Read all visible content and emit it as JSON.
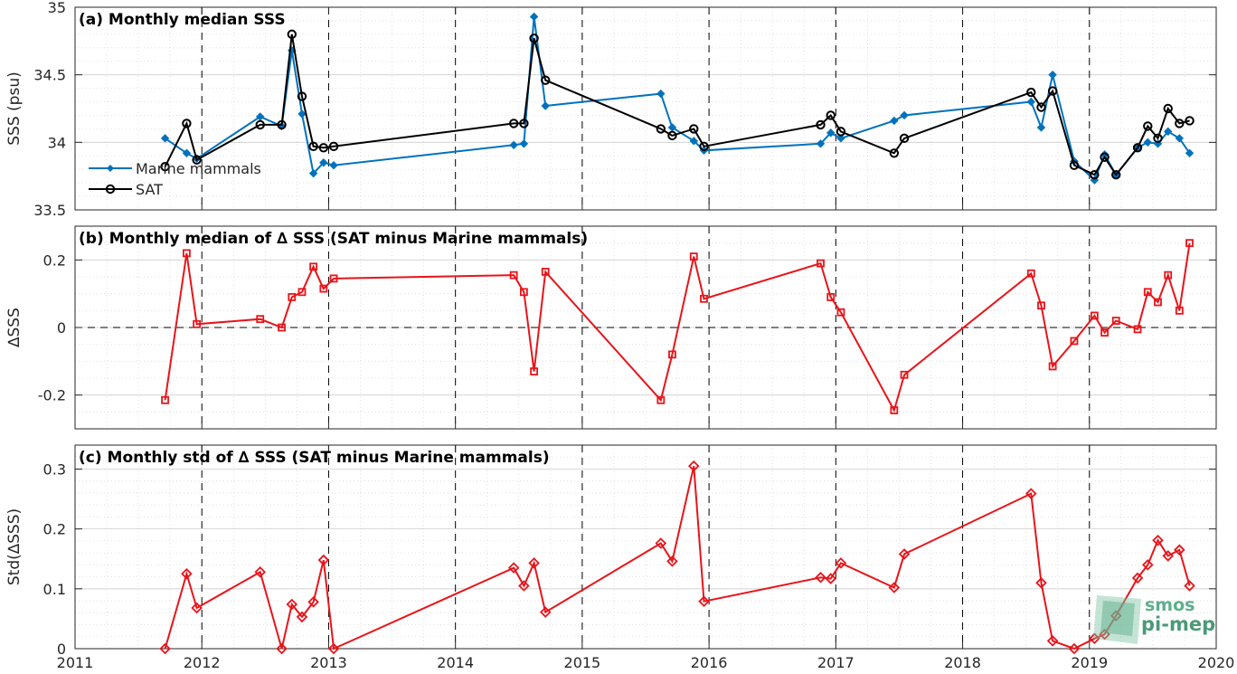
{
  "colors": {
    "blue": "#0072BD",
    "black": "#000000",
    "red": "#E8141A",
    "grid": "#d9d9d9",
    "logo": "#5fae8c"
  },
  "logo": {
    "line1": "smos",
    "line2": "pi-mep",
    "icon": "smos-pi-mep-logo"
  },
  "x_ticks": [
    "2011",
    "2012",
    "2013",
    "2014",
    "2015",
    "2016",
    "2017",
    "2018",
    "2019",
    "2020"
  ],
  "chart_data": [
    {
      "type": "line",
      "title": "(a) Monthly median SSS",
      "xlabel": "",
      "ylabel": "SSS (psu)",
      "xlim": [
        2011,
        2020
      ],
      "ylim": [
        33.5,
        35
      ],
      "y_ticks": [
        "33.5",
        "34",
        "34.5",
        "35"
      ],
      "y_tick_values": [
        33.5,
        34,
        34.5,
        35
      ],
      "grid": "on",
      "legend": "lower-left",
      "series": [
        {
          "name": "Marine mammals",
          "x": [
            2011.71,
            2011.88,
            2011.96,
            2012.46,
            2012.63,
            2012.71,
            2012.79,
            2012.88,
            2012.96,
            2013.04,
            2014.46,
            2014.54,
            2014.62,
            2014.71,
            2015.62,
            2015.71,
            2015.88,
            2015.96,
            2016.88,
            2016.96,
            2017.04,
            2017.46,
            2017.54,
            2018.54,
            2018.62,
            2018.71,
            2018.88,
            2019.04,
            2019.12,
            2019.21,
            2019.38,
            2019.46,
            2019.54,
            2019.62,
            2019.71,
            2019.79
          ],
          "y": [
            34.03,
            33.92,
            33.88,
            34.19,
            34.12,
            34.68,
            34.21,
            33.77,
            33.85,
            33.83,
            33.98,
            33.99,
            34.93,
            34.27,
            34.36,
            34.11,
            34.01,
            33.94,
            33.99,
            34.07,
            34.03,
            34.16,
            34.2,
            34.3,
            34.11,
            34.5,
            33.86,
            33.72,
            33.91,
            33.76,
            33.96,
            34.0,
            33.99,
            34.08,
            34.03,
            33.92
          ]
        },
        {
          "name": "SAT",
          "x": [
            2011.71,
            2011.88,
            2011.96,
            2012.46,
            2012.63,
            2012.71,
            2012.79,
            2012.88,
            2012.96,
            2013.04,
            2014.46,
            2014.54,
            2014.62,
            2014.71,
            2015.62,
            2015.71,
            2015.88,
            2015.96,
            2016.88,
            2016.96,
            2017.04,
            2017.46,
            2017.54,
            2018.54,
            2018.62,
            2018.71,
            2018.88,
            2019.04,
            2019.12,
            2019.21,
            2019.38,
            2019.46,
            2019.54,
            2019.62,
            2019.71,
            2019.79
          ],
          "y": [
            33.82,
            34.14,
            33.87,
            34.13,
            34.13,
            34.8,
            34.34,
            33.97,
            33.96,
            33.97,
            34.14,
            34.14,
            34.77,
            34.46,
            34.1,
            34.05,
            34.1,
            33.97,
            34.13,
            34.2,
            34.08,
            33.92,
            34.03,
            34.37,
            34.26,
            34.38,
            33.83,
            33.76,
            33.89,
            33.76,
            33.96,
            34.12,
            34.03,
            34.25,
            34.14,
            34.16
          ]
        }
      ]
    },
    {
      "type": "line",
      "title": "(b) Monthly median of ∆ SSS (SAT minus Marine mammals)",
      "xlabel": "",
      "ylabel": "∆SSS",
      "xlim": [
        2011,
        2020
      ],
      "ylim": [
        -0.3,
        0.3
      ],
      "y_ticks": [
        "-0.2",
        "0",
        "0.2"
      ],
      "y_tick_values": [
        -0.2,
        0,
        0.2
      ],
      "grid": "on",
      "zero_line": "dashed",
      "series": [
        {
          "name": "",
          "x": [
            2011.71,
            2011.88,
            2011.96,
            2012.46,
            2012.63,
            2012.71,
            2012.79,
            2012.88,
            2012.96,
            2013.04,
            2014.46,
            2014.54,
            2014.62,
            2014.71,
            2015.62,
            2015.71,
            2015.88,
            2015.96,
            2016.88,
            2016.96,
            2017.04,
            2017.46,
            2017.54,
            2018.54,
            2018.62,
            2018.71,
            2018.88,
            2019.04,
            2019.12,
            2019.21,
            2019.38,
            2019.46,
            2019.54,
            2019.62,
            2019.71,
            2019.79
          ],
          "y": [
            -0.215,
            0.22,
            0.01,
            0.025,
            0.0,
            0.09,
            0.105,
            0.18,
            0.115,
            0.145,
            0.155,
            0.105,
            -0.13,
            0.165,
            -0.215,
            -0.08,
            0.21,
            0.085,
            0.19,
            0.09,
            0.045,
            -0.245,
            -0.14,
            0.16,
            0.065,
            -0.115,
            -0.04,
            0.035,
            -0.015,
            0.02,
            -0.005,
            0.105,
            0.075,
            0.155,
            0.05,
            0.25
          ]
        }
      ]
    },
    {
      "type": "line",
      "title": "(c) Monthly std of ∆ SSS (SAT minus Marine mammals)",
      "xlabel": "",
      "ylabel": "Std(∆SSS)",
      "xlim": [
        2011,
        2020
      ],
      "ylim": [
        0,
        0.34
      ],
      "y_ticks": [
        "0",
        "0.1",
        "0.2",
        "0.3"
      ],
      "y_tick_values": [
        0,
        0.1,
        0.2,
        0.3
      ],
      "grid": "on",
      "series": [
        {
          "name": "",
          "x": [
            2011.71,
            2011.88,
            2011.96,
            2012.46,
            2012.63,
            2012.71,
            2012.79,
            2012.88,
            2012.96,
            2013.04,
            2014.46,
            2014.54,
            2014.62,
            2014.71,
            2015.62,
            2015.71,
            2015.88,
            2015.96,
            2016.88,
            2016.96,
            2017.04,
            2017.46,
            2017.54,
            2018.54,
            2018.62,
            2018.71,
            2018.88,
            2019.04,
            2019.12,
            2019.21,
            2019.38,
            2019.46,
            2019.54,
            2019.62,
            2019.71,
            2019.79
          ],
          "y": [
            0.0,
            0.125,
            0.068,
            0.128,
            0.0,
            0.074,
            0.053,
            0.078,
            0.148,
            0.0,
            0.135,
            0.105,
            0.143,
            0.061,
            0.176,
            0.146,
            0.305,
            0.079,
            0.119,
            0.117,
            0.143,
            0.102,
            0.158,
            0.259,
            0.11,
            0.013,
            0.0,
            0.017,
            0.024,
            0.055,
            0.118,
            0.14,
            0.181,
            0.155,
            0.165,
            0.105
          ]
        }
      ]
    }
  ]
}
